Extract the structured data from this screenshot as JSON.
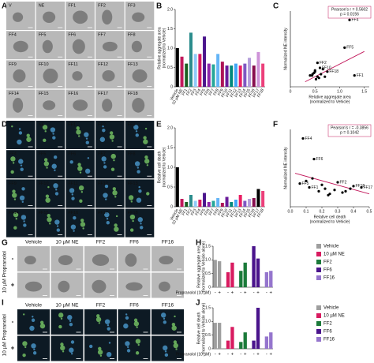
{
  "panel_labels": {
    "a": "A",
    "b": "B",
    "c": "C",
    "d": "D",
    "e": "E",
    "f": "F",
    "g": "G",
    "h": "H",
    "i": "I",
    "j": "J"
  },
  "micrographs": [
    {
      "style": "bright",
      "labels": [
        "V",
        "NE",
        "FF1",
        "FF2",
        "FF3",
        "FF4",
        "FF5",
        "FF6",
        "FF7",
        "FF8",
        "FF9",
        "FF10",
        "FF11",
        "FF12",
        "FF13",
        "FF14",
        "FF15",
        "FF16",
        "FF17",
        "FF18"
      ]
    },
    {
      "style": "fluor",
      "labels": [
        "V",
        "NE",
        "FF1",
        "FF2",
        "FF3",
        "FF4",
        "FF5",
        "FF6",
        "FF7",
        "FF8",
        "FF9",
        "FF10",
        "FF11",
        "FF12",
        "FF13",
        "FF14",
        "FF15",
        "FF16",
        "FF17",
        "FF18"
      ]
    },
    {
      "style": "bright",
      "columns": [
        "Vehicle",
        "10 µM NE",
        "FF2",
        "FF6",
        "FF16"
      ],
      "rows": [
        "-",
        "+"
      ],
      "side": "10 µM Propranolol"
    },
    {
      "style": "fluor",
      "columns": [
        "Vehicle",
        "10 µM NE",
        "FF2",
        "FF6",
        "FF16"
      ],
      "rows": [
        "-",
        "+"
      ],
      "side": "10 µM Propranolol"
    }
  ],
  "chart_data": [
    {
      "type": "bar",
      "ylabel": [
        "Relative aggregate area",
        "(normalized to Vehicle)"
      ],
      "categories": [
        "Vehicle",
        "10 µM NE",
        "FF1",
        "FF2",
        "FF3",
        "FF4",
        "FF5",
        "FF6",
        "FF7",
        "FF8",
        "FF9",
        "FF10",
        "FF11",
        "FF12",
        "FF13",
        "FF14",
        "FF15",
        "FF16",
        "FF17",
        "FF18"
      ],
      "values": [
        1.0,
        0.78,
        0.6,
        1.4,
        0.85,
        0.85,
        1.3,
        0.6,
        0.58,
        0.85,
        0.65,
        0.55,
        0.55,
        0.6,
        0.55,
        0.6,
        0.75,
        0.55,
        0.9,
        0.6
      ],
      "colors": [
        "#000000",
        "#c2185b",
        "#1b5e20",
        "#2a8c8c",
        "#90caf9",
        "#d81b60",
        "#4a148c",
        "#8e24aa",
        "#26a69a",
        "#64b5f6",
        "#ad1457",
        "#6a1b9a",
        "#00897b",
        "#42a5f5",
        "#e91e63",
        "#7e57c2",
        "#b39ddb",
        "#880e4f",
        "#ce93d8",
        "#ec407a"
      ],
      "ylim": [
        0,
        2
      ],
      "yticks": [
        0,
        0.5,
        {
          "value": 1,
          "label": "1.0"
        },
        1.5,
        {
          "value": 2,
          "label": "2.0"
        }
      ]
    },
    {
      "type": "scatter",
      "xlabel": [
        "Relative aggregate area",
        "(normalized to Vehicle)"
      ],
      "ylabel": [
        "Normalized NE intensity"
      ],
      "x": [
        1.2,
        1.1,
        0.55,
        0.6,
        0.75,
        1.3,
        0.5,
        0.45,
        0.4,
        0.55,
        0.62,
        0.48,
        0.58,
        0.52,
        0.44,
        0.66,
        0.7,
        0.5
      ],
      "y": [
        5.3,
        3.1,
        1.9,
        1.5,
        1.2,
        0.9,
        1.3,
        1.0,
        0.9,
        0.8,
        1.0,
        1.1,
        0.7,
        0.6,
        0.9,
        1.4,
        0.8,
        1.2
      ],
      "point_labels": [
        "FF4",
        "FF5",
        "FF2",
        "FF10",
        "FF18",
        "FF1",
        null,
        null,
        null,
        null,
        null,
        null,
        null,
        null,
        null,
        null,
        null,
        null
      ],
      "fit_x": [
        0.3,
        1.5
      ],
      "fit_y": [
        0.4,
        2.8
      ],
      "fit_color": "#c2185b",
      "annotation": [
        "Pearson's r = 0.5602",
        "p = 0.0156"
      ],
      "xlim": [
        0,
        1.6
      ],
      "xticks": [
        0,
        0.5,
        {
          "value": 1,
          "label": "1.0"
        },
        1.5
      ],
      "ylim": [
        0,
        6
      ]
    },
    {
      "type": "bar",
      "ylabel": [
        "Relative cell death",
        "(normalized to Vehicle)"
      ],
      "categories": [
        "Vehicle",
        "10 µM NE",
        "FF1",
        "FF2",
        "FF3",
        "FF4",
        "FF5",
        "FF6",
        "FF7",
        "FF8",
        "FF9",
        "FF10",
        "FF11",
        "FF12",
        "FF13",
        "FF14",
        "FF15",
        "FF16",
        "FF17",
        "FF18"
      ],
      "values": [
        1.0,
        0.2,
        0.12,
        0.3,
        0.15,
        0.18,
        0.35,
        0.12,
        0.15,
        0.22,
        0.1,
        0.25,
        0.12,
        0.18,
        0.3,
        0.15,
        0.2,
        0.22,
        0.45,
        0.4
      ],
      "colors": [
        "#000000",
        "#c2185b",
        "#1b5e20",
        "#2a8c8c",
        "#90caf9",
        "#d81b60",
        "#4a148c",
        "#8e24aa",
        "#26a69a",
        "#64b5f6",
        "#ad1457",
        "#6a1b9a",
        "#00897b",
        "#42a5f5",
        "#e91e63",
        "#7e57c2",
        "#b39ddb",
        "#880e4f",
        "#000000",
        "#ec407a"
      ],
      "ylim": [
        0,
        2
      ],
      "yticks": [
        0,
        0.5,
        {
          "value": 1,
          "label": "1.0"
        },
        1.5,
        {
          "value": 2,
          "label": "2.0"
        }
      ]
    },
    {
      "type": "scatter",
      "xlabel": [
        "Relative cell death",
        "(normalized to Vehicle)"
      ],
      "ylabel": [
        "Normalized NE intensity"
      ],
      "x": [
        0.08,
        0.15,
        0.06,
        0.12,
        0.3,
        0.4,
        0.45,
        0.18,
        0.22,
        0.25,
        0.2,
        0.28,
        0.14,
        0.33,
        0.1,
        0.24,
        0.35,
        0.38
      ],
      "y": [
        5.3,
        3.7,
        1.8,
        1.5,
        1.9,
        1.6,
        1.5,
        1.2,
        1.4,
        1.0,
        1.7,
        1.3,
        2.2,
        1.1,
        2.0,
        0.9,
        1.2,
        1.4
      ],
      "point_labels": [
        "FF4",
        "FF6",
        "FF5",
        "FF1",
        "FF2",
        "FF18",
        "FF17",
        null,
        null,
        null,
        null,
        null,
        null,
        null,
        null,
        null,
        null,
        null
      ],
      "fit_x": [
        0.03,
        0.5
      ],
      "fit_y": [
        2.6,
        1.0
      ],
      "fit_color": "#c2185b",
      "annotation": [
        "Pearson's r = -0.3856",
        "p = 0.1042"
      ],
      "xlim": [
        0,
        0.5
      ],
      "xticks": [
        {
          "value": 0,
          "label": "0.0"
        },
        0.1,
        0.2,
        0.3,
        0.4,
        0.5
      ],
      "ylim": [
        0,
        6
      ]
    },
    {
      "type": "grouped",
      "ylabel": [
        "Relative aggregate area",
        "(normalized to Vehicle alone)"
      ],
      "xlabel": "Propranolol (10 µM)",
      "categories": [
        "-",
        "+"
      ],
      "series": [
        {
          "name": "Vehicle",
          "color": "#9e9e9e",
          "values": [
            1.0,
            0.95
          ]
        },
        {
          "name": "10 µM NE",
          "color": "#d81b60",
          "values": [
            0.55,
            0.9
          ]
        },
        {
          "name": "FF2",
          "color": "#1b7a3a",
          "values": [
            0.6,
            0.9
          ]
        },
        {
          "name": "FF6",
          "color": "#4a148c",
          "values": [
            1.5,
            1.05
          ]
        },
        {
          "name": "FF16",
          "color": "#9575cd",
          "values": [
            0.55,
            0.6
          ]
        }
      ],
      "ylim": [
        0,
        1.5
      ],
      "yticks": [
        0,
        0.5,
        {
          "value": 1,
          "label": "1.0"
        },
        1.5
      ]
    },
    {
      "type": "grouped",
      "ylabel": [
        "Relative cell death",
        "(normalized to Vehicle alone)"
      ],
      "xlabel": "Propranolol (10 µM)",
      "categories": [
        "-",
        "+"
      ],
      "series": [
        {
          "name": "Vehicle",
          "color": "#9e9e9e",
          "values": [
            0.95,
            0.95
          ]
        },
        {
          "name": "10 µM NE",
          "color": "#d81b60",
          "values": [
            0.3,
            0.8
          ]
        },
        {
          "name": "FF2",
          "color": "#1b7a3a",
          "values": [
            0.25,
            0.6
          ]
        },
        {
          "name": "FF6",
          "color": "#4a148c",
          "values": [
            0.3,
            1.5
          ]
        },
        {
          "name": "FF16",
          "color": "#9575cd",
          "values": [
            0.45,
            0.6
          ]
        }
      ],
      "ylim": [
        0,
        1.5
      ],
      "yticks": [
        0,
        0.5,
        {
          "value": 1,
          "label": "1.0"
        },
        1.5
      ]
    }
  ]
}
